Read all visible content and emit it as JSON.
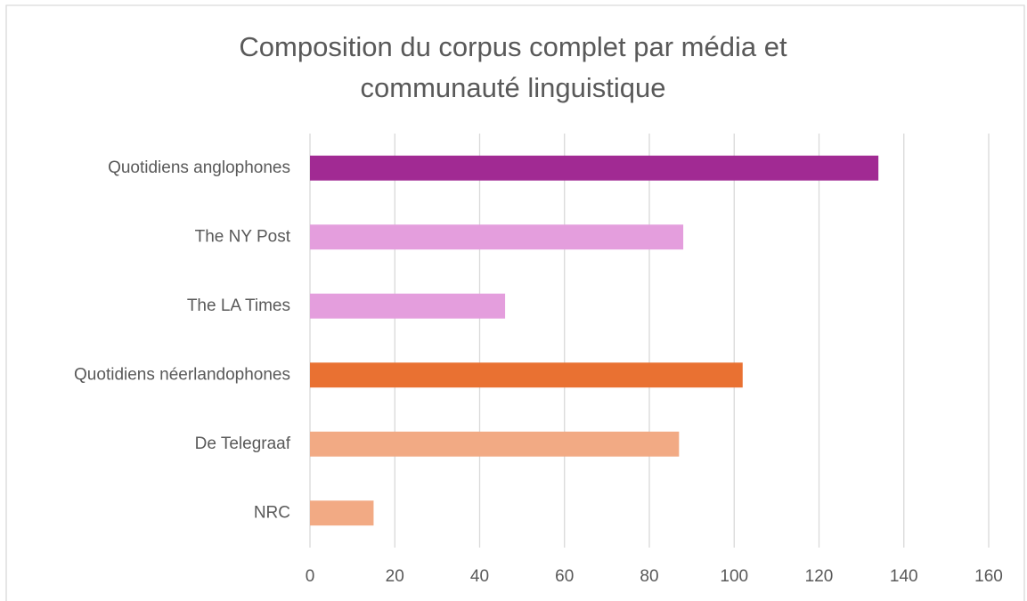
{
  "chart_data": {
    "type": "barh",
    "title": "Composition du corpus complet par média et communauté linguistique",
    "categories": [
      "Quotidiens anglophones",
      "The NY Post",
      "The LA Times",
      "Quotidiens néerlandophones",
      "De Telegraaf",
      "NRC"
    ],
    "values": [
      134,
      88,
      46,
      102,
      87,
      15
    ],
    "colors": [
      "#a12a93",
      "#e49edd",
      "#e49edd",
      "#e97132",
      "#f2aa84",
      "#f2aa84"
    ],
    "xlim": [
      0,
      160
    ],
    "xticks": [
      0,
      20,
      40,
      60,
      80,
      100,
      120,
      140,
      160
    ],
    "grid": true
  }
}
